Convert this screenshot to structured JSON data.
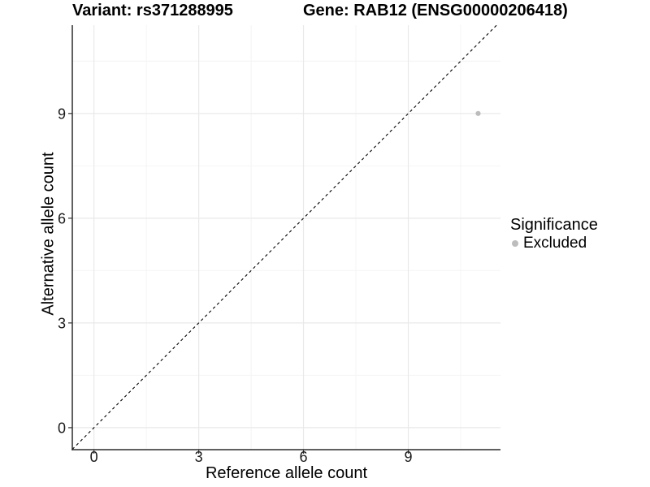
{
  "chart_data": {
    "type": "scatter",
    "title_left": "Variant: rs371288995",
    "title_right": "Gene: RAB12 (ENSG00000206418)",
    "xlabel": "Reference allele count",
    "ylabel": "Alternative allele count",
    "x_ticks": [
      0,
      3,
      6,
      9
    ],
    "y_ticks": [
      0,
      3,
      6,
      9
    ],
    "x_minor": [
      1.5,
      4.5,
      7.5,
      10.5
    ],
    "y_minor": [
      1.5,
      4.5,
      7.5,
      10.5
    ],
    "xlim": [
      -0.62,
      11.64
    ],
    "ylim": [
      -0.63,
      11.53
    ],
    "grid": true,
    "legend_position": "right",
    "points": [
      {
        "x": 11,
        "y": 9,
        "series": "Excluded"
      }
    ],
    "reference_line": {
      "style": "dashed",
      "slope": 1,
      "intercept": 0
    },
    "legend": {
      "title": "Significance",
      "entries": [
        {
          "label": "Excluded",
          "color": "#bdbdbd",
          "marker": "dot"
        }
      ]
    },
    "colors": {
      "point": "#bcbcbc",
      "grid_major": "#e9e9e9",
      "grid_minor": "#f4f4f4",
      "axis_line": "#2b2b2b",
      "tick": "#333333",
      "reference_line": "#000000"
    }
  }
}
